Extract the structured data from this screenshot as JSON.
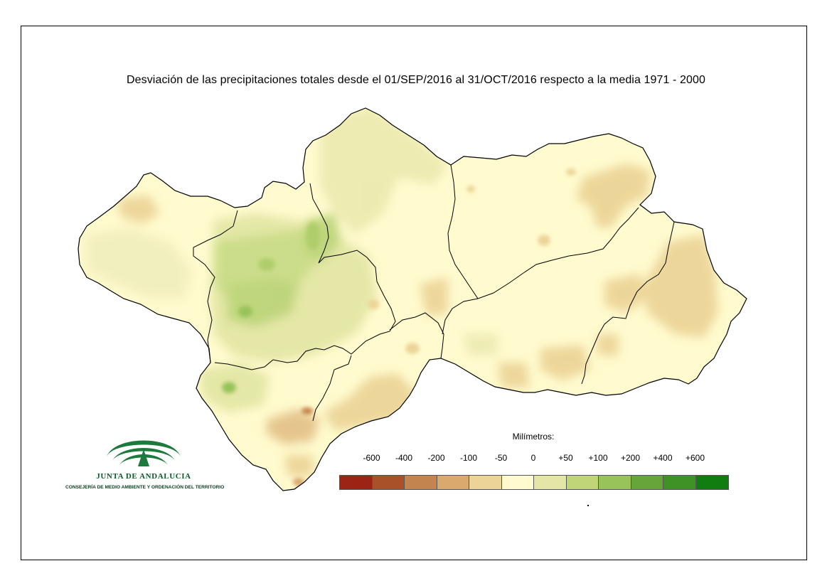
{
  "title": "Desviación de las precipitaciones totales desde el 01/SEP/2016 al 31/OCT/2016 respecto a la media 1971 - 2000",
  "legend": {
    "title": "Milímetros:",
    "labels": [
      "-600",
      "-400",
      "-200",
      "-100",
      "-50",
      "0",
      "+50",
      "+100",
      "+200",
      "+400",
      "+600"
    ],
    "colors": [
      "#9b2414",
      "#a9522a",
      "#c4844f",
      "#d9a96e",
      "#ecd498",
      "#fffbcf",
      "#e3e6a4",
      "#bfd578",
      "#98c25a",
      "#66a53a",
      "#3f9226",
      "#117c10"
    ]
  },
  "logo": {
    "name": "JUNTA DE ANDALUCIA",
    "subtitle": "CONSEJERÍA DE MEDIO AMBIENTE Y ORDENACIÓN DEL TERRITORIO",
    "color": "#1c7a3c"
  },
  "map": {
    "region": "Andalucía",
    "base_color": "#fffbcf"
  }
}
